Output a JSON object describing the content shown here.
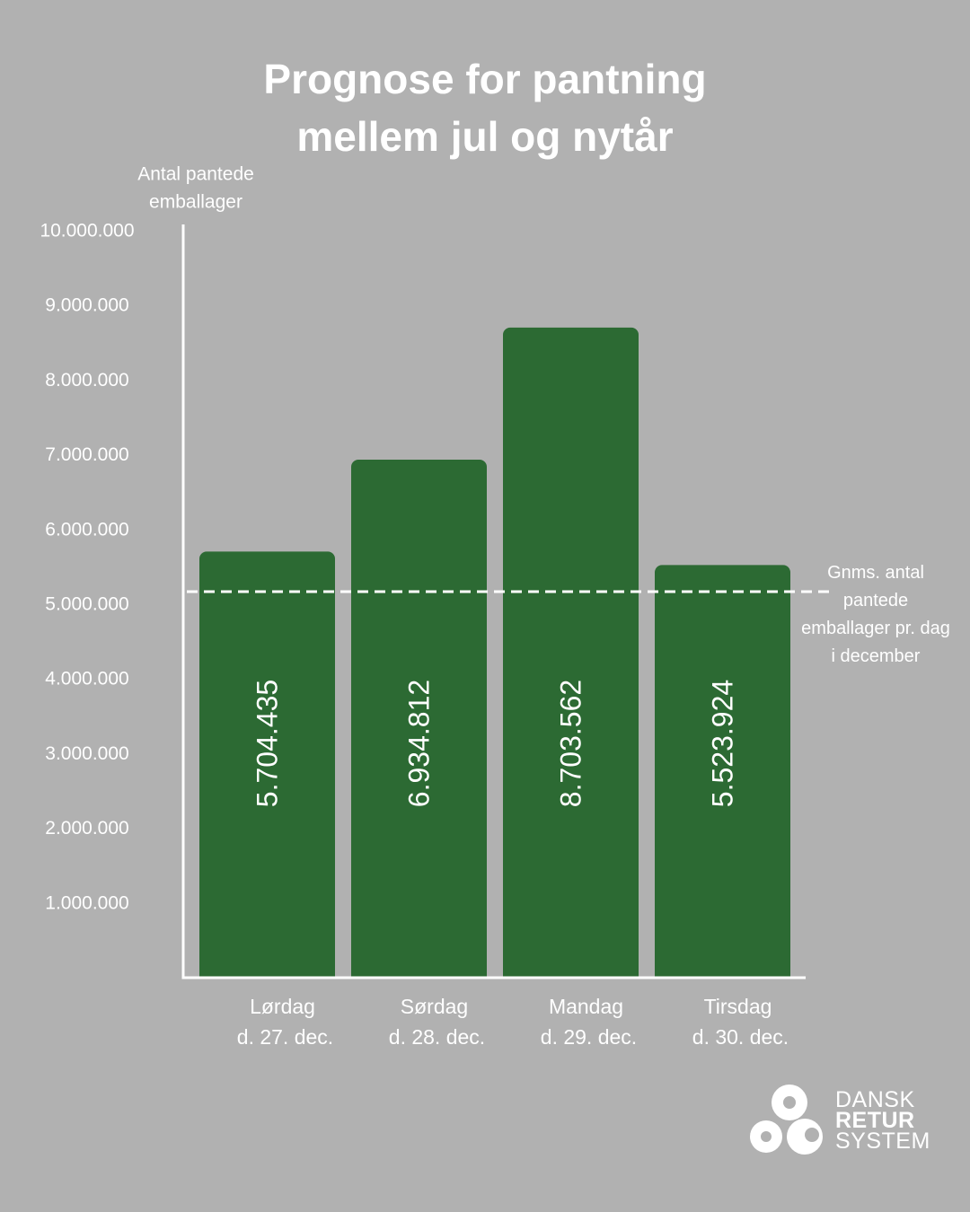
{
  "title": {
    "line1": "Prognose for pantning",
    "line2": "mellem jul og nytår"
  },
  "chart_data": {
    "type": "bar",
    "ylabel_lines": [
      "Antal pantede",
      "emballager"
    ],
    "ylim": [
      0,
      10000000
    ],
    "y_ticks": [
      {
        "value": 10000000,
        "label": "10.000.000"
      },
      {
        "value": 9000000,
        "label": "9.000.000"
      },
      {
        "value": 8000000,
        "label": "8.000.000"
      },
      {
        "value": 7000000,
        "label": "7.000.000"
      },
      {
        "value": 6000000,
        "label": "6.000.000"
      },
      {
        "value": 5000000,
        "label": "5.000.000"
      },
      {
        "value": 4000000,
        "label": "4.000.000"
      },
      {
        "value": 3000000,
        "label": "3.000.000"
      },
      {
        "value": 2000000,
        "label": "2.000.000"
      },
      {
        "value": 1000000,
        "label": "1.000.000"
      }
    ],
    "categories": [
      {
        "day": "Lørdag",
        "date": "d. 27. dec."
      },
      {
        "day": "Sørdag",
        "date": "d. 28. dec."
      },
      {
        "day": "Mandag",
        "date": "d. 29. dec."
      },
      {
        "day": "Tirsdag",
        "date": "d. 30. dec."
      }
    ],
    "values": [
      5704435,
      6934812,
      8703562,
      5523924
    ],
    "value_labels": [
      "5.704.435",
      "6.934.812",
      "8.703.562",
      "5.523.924"
    ],
    "average_line": {
      "value": 4900000,
      "label_lines": [
        "Gnms. antal",
        "pantede",
        "emballager pr. dag",
        "i december"
      ]
    },
    "grid": false,
    "colors": {
      "bar": "#2c6a33",
      "background": "#b1b1b1",
      "text": "#ffffff"
    }
  },
  "logo": {
    "line1": "DANSK",
    "line2": "RETUR",
    "line3": "SYSTEM"
  }
}
